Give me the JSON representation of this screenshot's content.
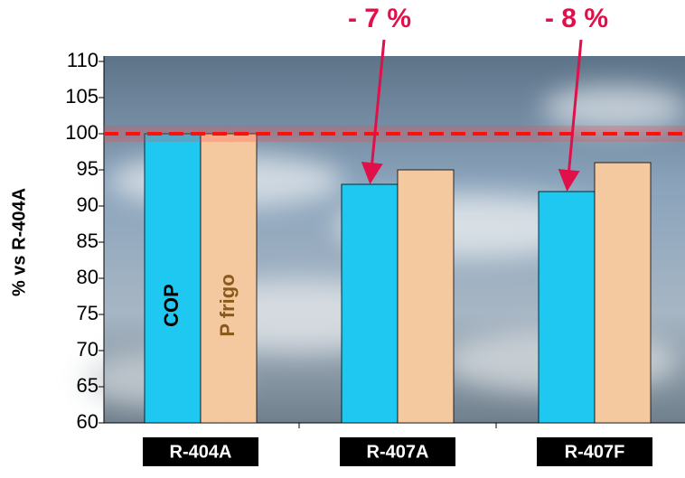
{
  "chart_data": {
    "type": "bar",
    "y_label": "% vs R-404A",
    "categories": [
      "R-404A",
      "R-407A",
      "R-407F"
    ],
    "series": [
      {
        "name": "COP",
        "color": "#1ec8f0",
        "values": [
          100,
          93,
          92
        ]
      },
      {
        "name": "P frigo",
        "color": "#f5c9a0",
        "values": [
          100,
          95,
          96
        ]
      }
    ],
    "ylim": [
      60,
      110
    ],
    "yticks": [
      60,
      65,
      70,
      75,
      80,
      85,
      90,
      95,
      100,
      105,
      110
    ],
    "reference_line": 100,
    "annotations": [
      "- 7 %",
      "- 8 %"
    ],
    "annotation_color": "#e0104a"
  }
}
